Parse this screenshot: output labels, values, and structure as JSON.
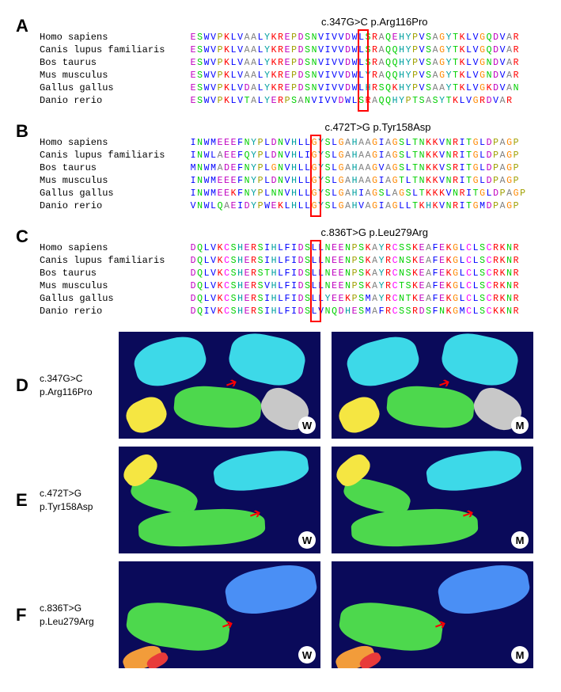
{
  "species": [
    "Homo sapiens",
    "Canis lupus familiaris",
    "Bos taurus",
    "Mus musculus",
    "Gallus gallus",
    "Danio rerio"
  ],
  "panelA": {
    "title": "c.347G>C p.Arg116Pro",
    "highlight_col": 25,
    "seqs": [
      "ESWVPKLVAALYKREPDSNVIVVDWLSRAQEHYPVSAGYTKLVGQDVAR",
      "ESWVPKLVAALYKREPDSNVIVVDWLSRAQQHYPVSAGYTKLVGQDVAR",
      "ESWVPKLVAALYKREPDSNVIVVDWLSRAQQHYPVSAGYTKLVGNDVAR",
      "ESWVPKLVAALYKREPDSNVIVVDWLYRAQQHYPVSAGYTKLVGNDVAR",
      "ESWVPKLVDALYKREPDSNVIVVDWLHRSQKHYPVSAAYTKLVGKDVAN",
      "ESWVPKLVTALYERPSANVIVVDWLSRAQQHYPTSASYTKLVGRDVAR"
    ]
  },
  "panelB": {
    "title": "c.472T>G p.Tyr158Asp",
    "highlight_col": 18,
    "seqs": [
      "INWMEEEFNYPLDNVHLLGYSLGAHAAGIAGSLTNKKVNRITGLDPAGP",
      "INWLAEEFQYPLDNVHLIGYSLGAHAAGIAGSLTNKKVNRITGLDPAGP",
      "MNWMADEFNYPLGNVHLLGYSLGAHAAGVAGSLTNKKVSRITGLDPAGP",
      "INWMEEEFNYPLDNVHLLGYSLGAHAAGIAGTLTNKKVNRITGLDPAGP",
      "INWMEEKFNYPLNNVHLLGYSLGAHIAGSLAGSLTKKKVNRITGLDPAGP",
      "VNWLQAEIDYPWEKLHLLGYSLGAHVAGIAGLLTKHKVNRITGMDPAGP"
    ]
  },
  "panelC": {
    "title": "c.836T>G p.Leu279Arg",
    "highlight_col": 18,
    "seqs": [
      "DQLVKCSHERSIHLFIDSLLNEENPSKAYRCSSKEAFEKGLCLSCRKNR",
      "DQLVKCSHERSIHLFIDSLLNEENPSKAYRCNSKEAFEKGLCLSCRKNR",
      "DQLVKCSHERSTHLFIDSLLNEENPSKAYRCNSKEAFEKGLCLSCRKNR",
      "DQLVKCSHERSVHLFIDSLLNEENPSKAYRCTSKEAFEKGLCLSCRKNR",
      "DQLVKCSHERSIHLFIDSLLYEEKPSMAYRCNTKEAFEKGLCLSCRKNR",
      "DQIVKCSHERSIHLFIDSLVNQDHESMAFRCSSRDSFNKGMCLSCKKNR"
    ]
  },
  "struct": [
    {
      "label": "c.347G>C\np.Arg116Pro",
      "panel": "D"
    },
    {
      "label": "c.472T>G\np.Tyr158Asp",
      "panel": "E"
    },
    {
      "label": "c.836T>G\np.Leu279Arg",
      "panel": "F"
    }
  ],
  "colors": {
    "bg": "#0a0a5a",
    "cyan": "#3dd9e8",
    "green": "#4dd84d",
    "yellow": "#f5e642",
    "orange": "#f29c3a",
    "red": "#e83a3a",
    "grey": "#c8c8c8",
    "blue": "#4a8ff5"
  }
}
